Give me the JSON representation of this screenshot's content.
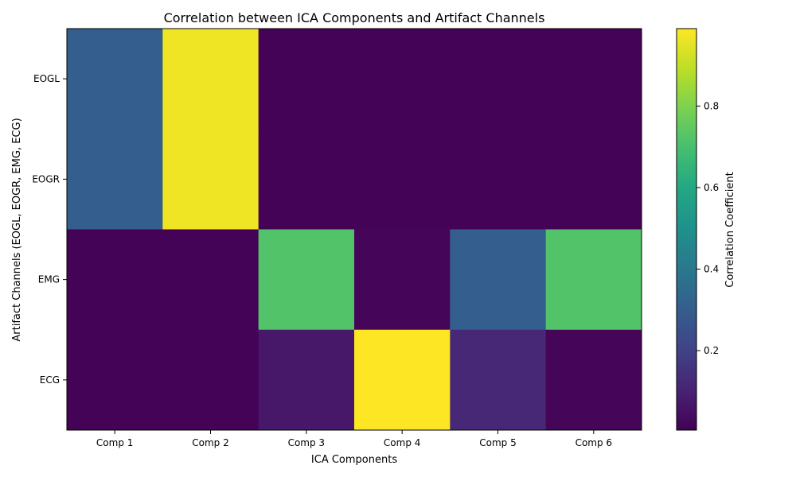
{
  "chart_data": {
    "type": "heatmap",
    "title": "Correlation between ICA Components and Artifact Channels",
    "xlabel": "ICA Components",
    "ylabel": "Artifact Channels (EOGL, EOGR, EMG, ECG)",
    "x_categories": [
      "Comp 1",
      "Comp 2",
      "Comp 3",
      "Comp 4",
      "Comp 5",
      "Comp 6"
    ],
    "y_categories": [
      "EOGL",
      "EOGR",
      "EMG",
      "ECG"
    ],
    "values": [
      [
        0.3,
        0.97,
        0.01,
        0.01,
        0.01,
        0.01
      ],
      [
        0.3,
        0.97,
        0.01,
        0.01,
        0.01,
        0.01
      ],
      [
        0.01,
        0.01,
        0.72,
        0.02,
        0.3,
        0.72
      ],
      [
        0.01,
        0.01,
        0.07,
        0.99,
        0.12,
        0.02
      ]
    ],
    "colormap": "viridis",
    "colorbar": {
      "label": "Correlation Coefficient",
      "range": [
        0.005,
        0.99
      ],
      "ticks": [
        0.2,
        0.4,
        0.6,
        0.8
      ],
      "tick_labels": [
        "0.2",
        "0.4",
        "0.6",
        "0.8"
      ]
    },
    "grid": false
  }
}
